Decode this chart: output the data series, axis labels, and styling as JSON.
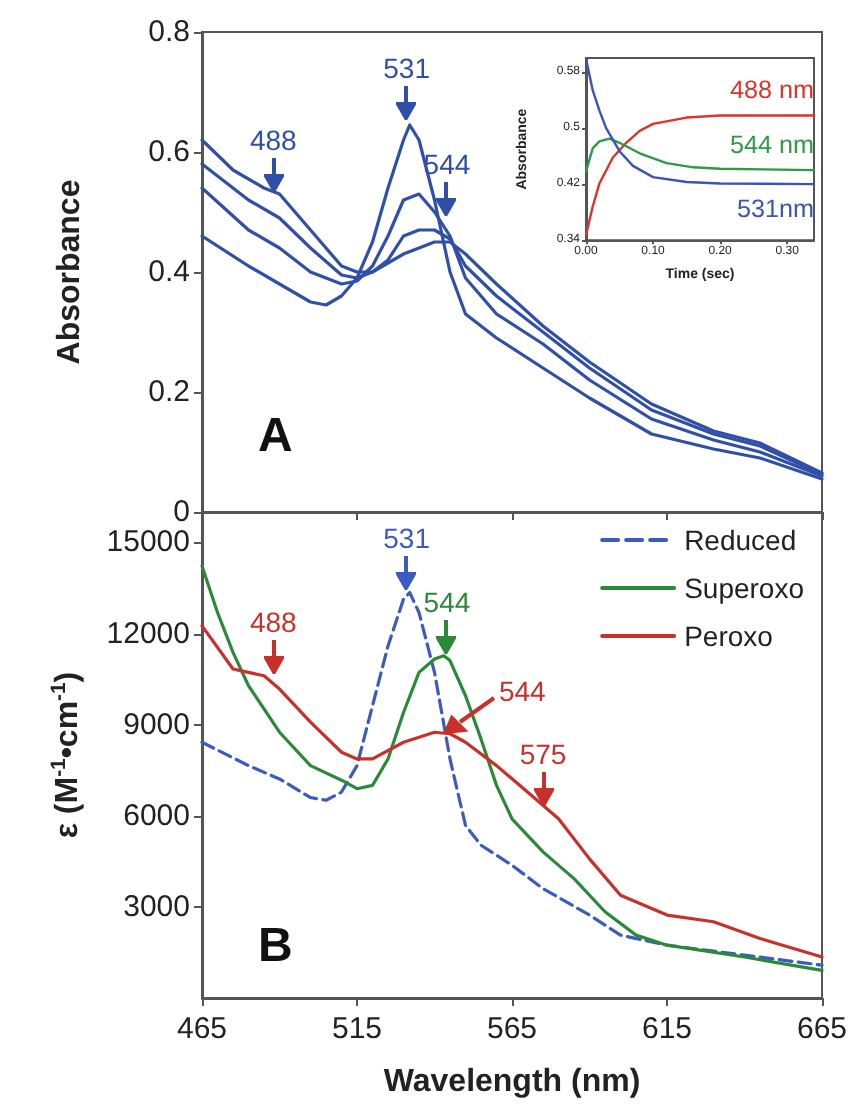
{
  "chart_data": [
    {
      "type": "line",
      "ylabel": "Absorbance",
      "xlim": [
        465,
        665
      ],
      "xticks": [
        465,
        515,
        565,
        615,
        665
      ],
      "ylim": [
        0,
        0.8
      ],
      "yticks": [
        0,
        0.2,
        0.4,
        0.6,
        0.8
      ],
      "tick_labels": "y",
      "grid": false,
      "legend": false,
      "marker": "none",
      "series": [
        {
          "color": "#2f4fa8",
          "x": [
            465,
            480,
            490,
            500,
            505,
            510,
            515,
            520,
            525,
            530,
            532,
            535,
            540,
            545,
            550,
            560,
            575,
            590,
            610,
            630,
            645,
            665
          ],
          "values": [
            0.46,
            0.41,
            0.38,
            0.35,
            0.345,
            0.36,
            0.39,
            0.45,
            0.54,
            0.62,
            0.645,
            0.62,
            0.52,
            0.4,
            0.33,
            0.29,
            0.24,
            0.19,
            0.13,
            0.105,
            0.09,
            0.055
          ]
        },
        {
          "color": "#2f4fa8",
          "x": [
            465,
            480,
            490,
            500,
            510,
            515,
            520,
            525,
            530,
            535,
            540,
            545,
            550,
            560,
            575,
            590,
            610,
            630,
            645,
            665
          ],
          "values": [
            0.54,
            0.47,
            0.44,
            0.4,
            0.38,
            0.385,
            0.41,
            0.46,
            0.52,
            0.53,
            0.5,
            0.46,
            0.39,
            0.33,
            0.28,
            0.22,
            0.155,
            0.12,
            0.1,
            0.06
          ]
        },
        {
          "color": "#2f4fa8",
          "x": [
            465,
            480,
            490,
            500,
            510,
            515,
            520,
            525,
            530,
            535,
            540,
            545,
            550,
            560,
            575,
            590,
            610,
            630,
            645,
            665
          ],
          "values": [
            0.58,
            0.52,
            0.49,
            0.44,
            0.395,
            0.39,
            0.4,
            0.42,
            0.46,
            0.47,
            0.47,
            0.455,
            0.41,
            0.36,
            0.3,
            0.24,
            0.17,
            0.13,
            0.11,
            0.063
          ]
        },
        {
          "color": "#2f4fa8",
          "x": [
            465,
            475,
            485,
            490,
            500,
            510,
            515,
            520,
            530,
            540,
            545,
            550,
            560,
            575,
            590,
            610,
            630,
            645,
            665
          ],
          "values": [
            0.62,
            0.57,
            0.54,
            0.53,
            0.47,
            0.41,
            0.4,
            0.4,
            0.43,
            0.45,
            0.45,
            0.43,
            0.38,
            0.31,
            0.25,
            0.18,
            0.135,
            0.115,
            0.065
          ]
        }
      ],
      "annotations": [
        {
          "text": "488",
          "x": 488,
          "y": 0.53
        },
        {
          "text": "531",
          "x": 531,
          "y": 0.65
        },
        {
          "text": "544",
          "x": 544,
          "y": 0.49
        },
        "A"
      ]
    },
    {
      "type": "line",
      "xlabel": "Time (sec)",
      "ylabel": "Absorbance",
      "xlim": [
        0,
        0.34
      ],
      "xticks": [
        {
          "value": 0,
          "label": "0.00"
        },
        {
          "value": 0.1,
          "label": "0.10"
        },
        {
          "value": 0.2,
          "label": "0.20"
        },
        {
          "value": 0.3,
          "label": "0.30"
        }
      ],
      "ylim": [
        0.34,
        0.6
      ],
      "yticks": [
        {
          "value": 0.34,
          "label": "0.34"
        },
        {
          "value": 0.42,
          "label": "0.42"
        },
        {
          "value": 0.5,
          "label": "0.5"
        },
        {
          "value": 0.58,
          "label": "0.58"
        }
      ],
      "grid": false,
      "legend": false,
      "marker": "none",
      "series": [
        {
          "name": "488 nm",
          "color": "#d9352b",
          "x": [
            0,
            0.01,
            0.02,
            0.04,
            0.06,
            0.08,
            0.1,
            0.15,
            0.2,
            0.34
          ],
          "values": [
            0.347,
            0.388,
            0.421,
            0.458,
            0.479,
            0.496,
            0.506,
            0.515,
            0.518,
            0.518
          ]
        },
        {
          "name": "544 nm",
          "color": "#2e9a45",
          "x": [
            0,
            0.01,
            0.02,
            0.035,
            0.05,
            0.08,
            0.12,
            0.16,
            0.2,
            0.34
          ],
          "values": [
            0.438,
            0.471,
            0.481,
            0.485,
            0.479,
            0.464,
            0.45,
            0.444,
            0.442,
            0.44
          ]
        },
        {
          "name": "531nm",
          "color": "#3a55b5",
          "x": [
            0,
            0.01,
            0.02,
            0.03,
            0.05,
            0.07,
            0.1,
            0.15,
            0.2,
            0.34
          ],
          "values": [
            0.599,
            0.554,
            0.525,
            0.5,
            0.467,
            0.446,
            0.43,
            0.423,
            0.421,
            0.42
          ]
        }
      ]
    },
    {
      "type": "line",
      "xlabel": "Wavelength (nm)",
      "ylabel": "ε (M$^{-1}$•cm$^{-1}$)",
      "xlim": [
        465,
        665
      ],
      "xticks": [
        465,
        515,
        565,
        615,
        665
      ],
      "ylim": [
        0,
        16000
      ],
      "yticks": [
        3000,
        6000,
        9000,
        12000,
        15000
      ],
      "grid": false,
      "legend": "top right",
      "marker": "none",
      "series": [
        {
          "name": "Reduced",
          "color": "#3c5bc0",
          "line_style": "dashed",
          "x": [
            465,
            480,
            490,
            500,
            505,
            510,
            515,
            520,
            525,
            530,
            532,
            535,
            540,
            545,
            550,
            555,
            565,
            575,
            590,
            600,
            615,
            640,
            665
          ],
          "values": [
            8420,
            7650,
            7210,
            6600,
            6510,
            6780,
            7650,
            9620,
            11590,
            13130,
            13350,
            12690,
            10720,
            7870,
            5680,
            5030,
            4370,
            3600,
            2730,
            2070,
            1740,
            1410,
            1080
          ]
        },
        {
          "name": "Superoxo",
          "color": "#2a8a3a",
          "line_style": "solid",
          "x": [
            465,
            470,
            475,
            480,
            490,
            500,
            510,
            515,
            520,
            525,
            530,
            535,
            540,
            543,
            545,
            550,
            555,
            560,
            565,
            575,
            585,
            595,
            605,
            615,
            640,
            665
          ],
          "values": [
            14220,
            12690,
            11380,
            10280,
            8750,
            7650,
            7170,
            6890,
            7000,
            7870,
            9400,
            10720,
            11160,
            11270,
            11110,
            9950,
            8530,
            7000,
            5900,
            4810,
            3930,
            2840,
            2070,
            1740,
            1350,
            910
          ]
        },
        {
          "name": "Peroxo",
          "color": "#c8302a",
          "line_style": "solid",
          "x": [
            465,
            475,
            485,
            490,
            500,
            510,
            515,
            520,
            530,
            540,
            545,
            550,
            560,
            570,
            580,
            590,
            600,
            615,
            630,
            645,
            665
          ],
          "values": [
            12250,
            10830,
            10610,
            10170,
            9080,
            8090,
            7870,
            7870,
            8420,
            8750,
            8700,
            8420,
            7650,
            6780,
            5900,
            4580,
            3380,
            2730,
            2510,
            1960,
            1350
          ]
        }
      ],
      "annotations": [
        {
          "text": "488",
          "x": 488,
          "y": 10600
        },
        {
          "text": "531",
          "x": 531,
          "y": 13350
        },
        {
          "text": "544",
          "x": 544,
          "y": 11250
        },
        {
          "text": "544",
          "x": 544,
          "y": 8720
        },
        {
          "text": "575",
          "x": 575,
          "y": 6250
        },
        "B"
      ]
    }
  ]
}
